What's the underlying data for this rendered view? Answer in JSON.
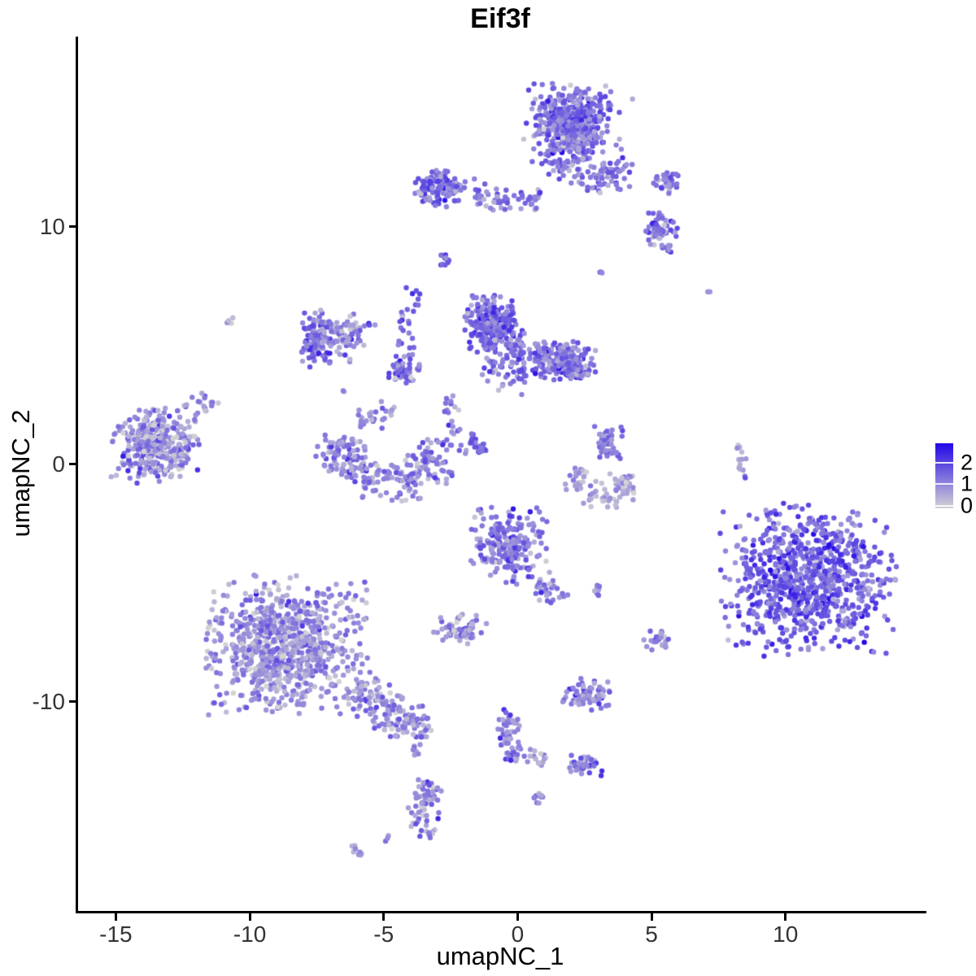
{
  "chart_data": {
    "type": "scatter",
    "title": "Eif3f",
    "xlabel": "umapNC_1",
    "ylabel": "umapNC_2",
    "x_ticks": [
      -15,
      -10,
      -5,
      0,
      5,
      10
    ],
    "y_ticks": [
      -10,
      0,
      10
    ],
    "xlim": [
      -16.5,
      15.2
    ],
    "ylim": [
      -18.8,
      18.0
    ],
    "grid": false,
    "point_radius_px": 3.2,
    "expression_range": [
      0,
      2.85
    ],
    "color_scale": {
      "from": "#D3D3D3",
      "to": "#2206E8"
    },
    "legend": {
      "position": "right",
      "labels": [
        "2",
        "1",
        "0"
      ],
      "values": [
        2,
        1,
        0
      ],
      "vmin": -0.1,
      "vmax": 2.88
    },
    "clusters": [
      {
        "name": "top-main-dense",
        "shape": "blob",
        "center": [
          2.0,
          14.3
        ],
        "r": [
          1.35,
          1.55
        ],
        "n": 430,
        "expr": [
          1.4,
          0.5
        ]
      },
      {
        "name": "top-main-halo",
        "shape": "blob",
        "center": [
          2.0,
          14.3
        ],
        "r": [
          2.1,
          2.3
        ],
        "n": 90,
        "expr": [
          1.15,
          0.5
        ]
      },
      {
        "name": "top-arm-bridge",
        "shape": "band",
        "from": [
          1.4,
          12.7
        ],
        "to": [
          3.3,
          11.7
        ],
        "w": 0.35,
        "n": 45,
        "expr": [
          1.2,
          0.45
        ]
      },
      {
        "name": "top-arm-blob",
        "shape": "blob",
        "center": [
          3.6,
          12.3
        ],
        "r": [
          0.7,
          0.8
        ],
        "n": 40,
        "expr": [
          1.25,
          0.5
        ]
      },
      {
        "name": "top-right-knot",
        "shape": "blob",
        "center": [
          5.5,
          11.9
        ],
        "r": [
          0.5,
          0.45
        ],
        "n": 28,
        "expr": [
          1.3,
          0.5
        ]
      },
      {
        "name": "right-upper-blob",
        "shape": "blob",
        "center": [
          5.3,
          9.7
        ],
        "r": [
          0.75,
          0.8
        ],
        "n": 60,
        "expr": [
          1.35,
          0.5
        ]
      },
      {
        "name": "upper-left-band-dense",
        "shape": "blob",
        "center": [
          -2.9,
          11.6
        ],
        "r": [
          0.95,
          0.7
        ],
        "n": 130,
        "expr": [
          1.35,
          0.5
        ]
      },
      {
        "name": "upper-left-band-tail",
        "shape": "band",
        "from": [
          -1.8,
          11.4
        ],
        "to": [
          0.8,
          11.1
        ],
        "w": 0.3,
        "n": 55,
        "expr": [
          1.2,
          0.45
        ]
      },
      {
        "name": "small-streak-upper",
        "shape": "band",
        "from": [
          -2.85,
          8.85
        ],
        "to": [
          -2.55,
          8.3
        ],
        "w": 0.12,
        "n": 13,
        "expr": [
          1.5,
          0.4
        ]
      },
      {
        "name": "mid-main-dense",
        "shape": "blob",
        "center": [
          -1.0,
          5.95
        ],
        "r": [
          0.9,
          1.15
        ],
        "n": 240,
        "expr": [
          1.5,
          0.5
        ]
      },
      {
        "name": "mid-main-right",
        "shape": "blob",
        "center": [
          1.85,
          4.3
        ],
        "r": [
          1.0,
          0.8
        ],
        "n": 170,
        "expr": [
          1.35,
          0.5
        ]
      },
      {
        "name": "mid-main-bridge",
        "shape": "band",
        "from": [
          -0.5,
          4.85
        ],
        "to": [
          1.1,
          4.5
        ],
        "w": 0.45,
        "n": 90,
        "expr": [
          1.3,
          0.5
        ]
      },
      {
        "name": "mid-main-under",
        "shape": "band",
        "from": [
          -1.4,
          4.05
        ],
        "to": [
          0.4,
          3.6
        ],
        "w": 0.4,
        "n": 40,
        "expr": [
          1.2,
          0.5
        ]
      },
      {
        "name": "mid-left-dense-edge",
        "shape": "blob",
        "center": [
          -7.5,
          5.3
        ],
        "r": [
          0.6,
          1.1
        ],
        "n": 115,
        "expr": [
          1.45,
          0.5
        ]
      },
      {
        "name": "mid-left-scatter",
        "shape": "blob",
        "center": [
          -6.3,
          5.3
        ],
        "r": [
          0.95,
          1.0
        ],
        "n": 70,
        "expr": [
          1.05,
          0.5
        ]
      },
      {
        "name": "small-knot-center",
        "shape": "blob",
        "center": [
          -4.4,
          3.85
        ],
        "r": [
          0.4,
          0.5
        ],
        "n": 45,
        "expr": [
          1.5,
          0.45
        ]
      },
      {
        "name": "vertical-trail-center",
        "shape": "band",
        "from": [
          -4.25,
          3.4
        ],
        "to": [
          -3.95,
          7.5
        ],
        "w": 0.22,
        "n": 40,
        "expr": [
          1.35,
          0.5
        ]
      },
      {
        "name": "far-left-cluster",
        "shape": "blob",
        "center": [
          -13.5,
          0.8
        ],
        "r": [
          1.55,
          1.5
        ],
        "n": 340,
        "expr": [
          0.95,
          0.55
        ]
      },
      {
        "name": "far-left-arm",
        "shape": "band",
        "from": [
          -12.3,
          2.1
        ],
        "to": [
          -11.4,
          2.85
        ],
        "w": 0.28,
        "n": 22,
        "expr": [
          0.9,
          0.45
        ]
      },
      {
        "name": "center-crescent",
        "shape": "arc",
        "center": [
          -4.85,
          0.7
        ],
        "rx": 1.9,
        "ry": 1.5,
        "a0": 160,
        "a1": 380,
        "w": 0.45,
        "n": 250,
        "expr": [
          1.1,
          0.45
        ]
      },
      {
        "name": "crescent-sparse-above",
        "shape": "blob",
        "center": [
          -5.4,
          2.1
        ],
        "r": [
          0.75,
          0.55
        ],
        "n": 28,
        "expr": [
          0.9,
          0.45
        ]
      },
      {
        "name": "chain-above-crescent",
        "shape": "band",
        "from": [
          -2.5,
          2.9
        ],
        "to": [
          -2.2,
          1.4
        ],
        "w": 0.18,
        "n": 16,
        "expr": [
          1.1,
          0.45
        ]
      },
      {
        "name": "diag-streak-center",
        "shape": "band",
        "from": [
          -1.85,
          1.2
        ],
        "to": [
          -1.25,
          0.5
        ],
        "w": 0.12,
        "n": 26,
        "expr": [
          1.55,
          0.45
        ]
      },
      {
        "name": "right-small-upper",
        "shape": "blob",
        "center": [
          3.4,
          0.9
        ],
        "r": [
          0.5,
          0.8
        ],
        "n": 48,
        "expr": [
          1.15,
          0.5
        ]
      },
      {
        "name": "right-small-arc",
        "shape": "arc",
        "center": [
          3.2,
          -0.3
        ],
        "rx": 1.05,
        "ry": 1.0,
        "a0": 170,
        "a1": 350,
        "w": 0.35,
        "n": 85,
        "expr": [
          0.75,
          0.4
        ]
      },
      {
        "name": "right-vertical-streak",
        "shape": "band",
        "from": [
          8.3,
          0.95
        ],
        "to": [
          8.45,
          -0.75
        ],
        "w": 0.1,
        "n": 13,
        "expr": [
          0.95,
          0.6
        ]
      },
      {
        "name": "right-large-cluster",
        "shape": "blob",
        "center": [
          10.85,
          -4.85
        ],
        "r": [
          3.0,
          2.95
        ],
        "n": 870,
        "expr": [
          1.55,
          0.5
        ]
      },
      {
        "name": "bottom-center-cluster",
        "shape": "blob",
        "center": [
          -0.3,
          -3.45
        ],
        "r": [
          1.35,
          1.5
        ],
        "n": 210,
        "expr": [
          1.2,
          0.5
        ]
      },
      {
        "name": "bottom-center-tail",
        "shape": "band",
        "from": [
          0.75,
          -4.9
        ],
        "to": [
          1.6,
          -5.8
        ],
        "w": 0.28,
        "n": 32,
        "expr": [
          1.15,
          0.45
        ]
      },
      {
        "name": "tiny-pair-center",
        "shape": "blob",
        "center": [
          3.0,
          -5.25
        ],
        "r": [
          0.22,
          0.25
        ],
        "n": 9,
        "expr": [
          1.25,
          0.4
        ]
      },
      {
        "name": "bottom-left-main",
        "shape": "blob",
        "center": [
          -8.7,
          -7.6
        ],
        "r": [
          2.9,
          2.7
        ],
        "n": 800,
        "expr": [
          0.9,
          0.5
        ]
      },
      {
        "name": "bottom-left-tail",
        "shape": "band",
        "from": [
          -6.3,
          -9.4
        ],
        "to": [
          -4.0,
          -10.9
        ],
        "w": 0.45,
        "n": 130,
        "expr": [
          0.95,
          0.45
        ]
      },
      {
        "name": "bottom-left-tail-tip",
        "shape": "band",
        "from": [
          -4.0,
          -10.8
        ],
        "to": [
          -3.2,
          -11.15
        ],
        "w": 0.3,
        "n": 30,
        "expr": [
          1.0,
          0.45
        ]
      },
      {
        "name": "small-below-center",
        "shape": "blob",
        "center": [
          -2.15,
          -6.9
        ],
        "r": [
          0.9,
          0.6
        ],
        "n": 65,
        "expr": [
          0.95,
          0.45
        ]
      },
      {
        "name": "small-right-mid",
        "shape": "blob",
        "center": [
          5.2,
          -7.4
        ],
        "r": [
          0.5,
          0.45
        ],
        "n": 26,
        "expr": [
          1.0,
          0.5
        ]
      },
      {
        "name": "small-mid-low",
        "shape": "blob",
        "center": [
          2.6,
          -9.7
        ],
        "r": [
          0.85,
          0.65
        ],
        "n": 75,
        "expr": [
          1.1,
          0.45
        ]
      },
      {
        "name": "streak-down-center",
        "shape": "band",
        "from": [
          -0.4,
          -10.3
        ],
        "to": [
          -0.2,
          -12.5
        ],
        "w": 0.22,
        "n": 60,
        "expr": [
          1.2,
          0.5
        ]
      },
      {
        "name": "side-dots-low",
        "shape": "band",
        "from": [
          0.35,
          -12.2
        ],
        "to": [
          1.05,
          -12.4
        ],
        "w": 0.15,
        "n": 14,
        "expr": [
          0.75,
          0.45
        ]
      },
      {
        "name": "small-low-right",
        "shape": "blob",
        "center": [
          2.55,
          -12.65
        ],
        "r": [
          0.6,
          0.45
        ],
        "n": 45,
        "expr": [
          1.3,
          0.5
        ]
      },
      {
        "name": "tiny-low-center",
        "shape": "blob",
        "center": [
          0.8,
          -14.1
        ],
        "r": [
          0.25,
          0.22
        ],
        "n": 9,
        "expr": [
          1.1,
          0.4
        ]
      },
      {
        "name": "vertical-small-bottom",
        "shape": "band",
        "from": [
          -3.35,
          -13.3
        ],
        "to": [
          -3.65,
          -15.8
        ],
        "w": 0.28,
        "n": 70,
        "expr": [
          1.0,
          0.6
        ]
      },
      {
        "name": "dots-above-vertical",
        "shape": "blob",
        "center": [
          -3.8,
          -12.1
        ],
        "r": [
          0.18,
          0.3
        ],
        "n": 7,
        "expr": [
          0.9,
          0.4
        ]
      },
      {
        "name": "dot-bottom-left",
        "shape": "blob",
        "center": [
          -4.85,
          -15.75
        ],
        "r": [
          0.12,
          0.12
        ],
        "n": 3,
        "expr": [
          1.2,
          0.3
        ]
      },
      {
        "name": "streak-bottom-left",
        "shape": "band",
        "from": [
          -6.3,
          -16.1
        ],
        "to": [
          -5.75,
          -16.5
        ],
        "w": 0.12,
        "n": 9,
        "expr": [
          0.8,
          0.4
        ]
      },
      {
        "name": "dot-pair-far-left",
        "shape": "blob",
        "center": [
          -10.8,
          6.05
        ],
        "r": [
          0.18,
          0.15
        ],
        "n": 4,
        "expr": [
          0.6,
          0.3
        ]
      },
      {
        "name": "isolated-dot-right",
        "shape": "blob",
        "center": [
          7.1,
          7.2
        ],
        "r": [
          0.1,
          0.1
        ],
        "n": 2,
        "expr": [
          1.0,
          0.3
        ]
      },
      {
        "name": "isolated-dot-upper-right",
        "shape": "blob",
        "center": [
          3.1,
          8.1
        ],
        "r": [
          0.12,
          0.12
        ],
        "n": 3,
        "expr": [
          1.1,
          0.3
        ]
      },
      {
        "name": "dots-mid-small",
        "shape": "blob",
        "center": [
          -3.6,
          4.1
        ],
        "r": [
          0.15,
          0.15
        ],
        "n": 4,
        "expr": [
          1.2,
          0.3
        ]
      },
      {
        "name": "dot-mid-left",
        "shape": "blob",
        "center": [
          -6.5,
          3.1
        ],
        "r": [
          0.12,
          0.12
        ],
        "n": 2,
        "expr": [
          0.9,
          0.3
        ]
      }
    ]
  }
}
